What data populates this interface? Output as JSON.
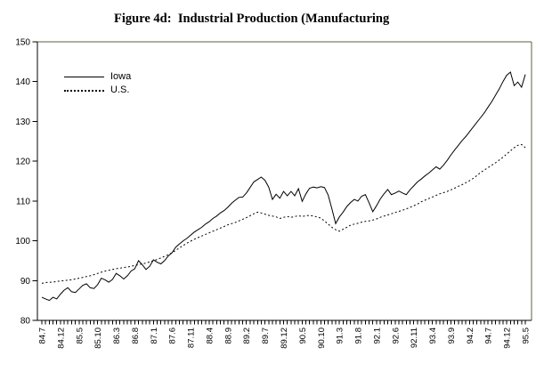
{
  "title": "Figure 4d:  Industrial Production (Manufacturing",
  "colors": {
    "background": "#ffffff",
    "frame": "#5f5f46",
    "axis": "#000000",
    "line": "#000000",
    "text": "#000000"
  },
  "legend": {
    "items": [
      {
        "label": "Iowa",
        "style": "solid"
      },
      {
        "label": "U.S.",
        "style": "dotted"
      }
    ]
  },
  "chart_data": {
    "type": "line",
    "title": "Figure 4d:  Industrial Production (Manufacturing",
    "xlabel": "",
    "ylabel": "",
    "ylim": [
      80,
      150
    ],
    "yticks": [
      80,
      90,
      100,
      110,
      120,
      130,
      140,
      150
    ],
    "grid": false,
    "legend_position": "top-left",
    "x_tick_label_every": 5,
    "x_tick_labels_shown": [
      "84.7",
      "84.12",
      "85.5",
      "85.10",
      "86.3",
      "86.8",
      "87.1",
      "87.6",
      "87.11",
      "88.4",
      "88.9",
      "89.2",
      "89.7",
      "89.12",
      "90.5",
      "90.10",
      "91.3",
      "91.8",
      "92.1",
      "92.6",
      "92.11",
      "93.4",
      "93.9",
      "94.2",
      "94.7",
      "94.12",
      "95.5"
    ],
    "x": [
      "84.7",
      "84.8",
      "84.9",
      "84.10",
      "84.11",
      "84.12",
      "85.1",
      "85.2",
      "85.3",
      "85.4",
      "85.5",
      "85.6",
      "85.7",
      "85.8",
      "85.9",
      "85.10",
      "85.11",
      "85.12",
      "86.1",
      "86.2",
      "86.3",
      "86.4",
      "86.5",
      "86.6",
      "86.7",
      "86.8",
      "86.9",
      "86.10",
      "86.11",
      "86.12",
      "87.1",
      "87.2",
      "87.3",
      "87.4",
      "87.5",
      "87.6",
      "87.7",
      "87.8",
      "87.9",
      "87.10",
      "87.11",
      "87.12",
      "88.1",
      "88.2",
      "88.3",
      "88.4",
      "88.5",
      "88.6",
      "88.7",
      "88.8",
      "88.9",
      "88.10",
      "88.11",
      "88.12",
      "89.1",
      "89.2",
      "89.3",
      "89.4",
      "89.5",
      "89.6",
      "89.7",
      "89.8",
      "89.9",
      "89.10",
      "89.11",
      "89.12",
      "90.1",
      "90.2",
      "90.3",
      "90.4",
      "90.5",
      "90.6",
      "90.7",
      "90.8",
      "90.9",
      "90.10",
      "90.11",
      "90.12",
      "91.1",
      "91.2",
      "91.3",
      "91.4",
      "91.5",
      "91.6",
      "91.7",
      "91.8",
      "91.9",
      "91.10",
      "91.11",
      "91.12",
      "92.1",
      "92.2",
      "92.3",
      "92.4",
      "92.5",
      "92.6",
      "92.7",
      "92.8",
      "92.9",
      "92.10",
      "92.11",
      "92.12",
      "93.1",
      "93.2",
      "93.3",
      "93.4",
      "93.5",
      "93.6",
      "93.7",
      "93.8",
      "93.9",
      "93.10",
      "93.11",
      "93.12",
      "94.1",
      "94.2",
      "94.3",
      "94.4",
      "94.5",
      "94.6",
      "94.7",
      "94.8",
      "94.9",
      "94.10",
      "94.11",
      "94.12",
      "95.1",
      "95.2",
      "95.3",
      "95.4",
      "95.5"
    ],
    "series": [
      {
        "name": "Iowa",
        "style": "solid",
        "values": [
          85.8,
          85.4,
          85.0,
          85.8,
          85.4,
          86.6,
          87.6,
          88.2,
          87.2,
          87.0,
          87.9,
          88.8,
          89.2,
          88.2,
          88.0,
          89.0,
          90.6,
          90.2,
          89.6,
          90.3,
          91.8,
          91.2,
          90.4,
          91.2,
          92.4,
          93.0,
          95.0,
          94.0,
          92.8,
          93.6,
          95.2,
          94.6,
          94.2,
          95.0,
          96.2,
          97.0,
          98.4,
          99.2,
          100.0,
          100.6,
          101.4,
          102.2,
          102.8,
          103.4,
          104.2,
          104.8,
          105.6,
          106.2,
          107.0,
          107.6,
          108.4,
          109.4,
          110.2,
          110.9,
          111.0,
          112.0,
          113.4,
          114.8,
          115.4,
          116.0,
          115.2,
          113.5,
          110.4,
          111.7,
          110.7,
          112.4,
          111.3,
          112.4,
          111.3,
          113.1,
          109.9,
          111.8,
          113.2,
          113.5,
          113.3,
          113.6,
          113.4,
          111.5,
          108.0,
          104.3,
          106.0,
          107.2,
          108.6,
          109.6,
          110.4,
          110.0,
          111.2,
          111.6,
          109.5,
          107.3,
          108.8,
          110.5,
          111.8,
          112.9,
          111.6,
          112.0,
          112.5,
          112.0,
          111.6,
          112.8,
          113.8,
          114.8,
          115.5,
          116.3,
          117.0,
          117.8,
          118.6,
          118.0,
          119.0,
          120.2,
          121.6,
          122.8,
          124.0,
          125.2,
          126.2,
          127.4,
          128.6,
          129.8,
          131.0,
          132.2,
          133.6,
          135.0,
          136.6,
          138.2,
          140.0,
          141.6,
          142.4,
          139.0,
          139.9,
          138.6,
          141.8
        ]
      },
      {
        "name": "U.S.",
        "style": "dotted",
        "values": [
          89.3,
          89.5,
          89.6,
          89.6,
          89.8,
          89.9,
          90.0,
          90.1,
          90.2,
          90.4,
          90.6,
          90.8,
          91.0,
          91.2,
          91.5,
          91.8,
          92.1,
          92.4,
          92.6,
          92.8,
          93.0,
          93.1,
          93.3,
          93.4,
          93.6,
          93.8,
          94.0,
          94.2,
          94.4,
          94.7,
          95.0,
          95.3,
          95.7,
          96.1,
          96.5,
          97.0,
          97.6,
          98.2,
          98.8,
          99.4,
          99.9,
          100.4,
          100.8,
          101.2,
          101.6,
          102.0,
          102.4,
          102.8,
          103.2,
          103.6,
          104.0,
          104.3,
          104.6,
          105.0,
          105.4,
          105.8,
          106.3,
          106.8,
          107.2,
          107.0,
          106.7,
          106.4,
          106.2,
          106.0,
          105.6,
          105.9,
          106.1,
          105.9,
          106.1,
          106.3,
          106.1,
          106.3,
          106.4,
          106.2,
          106.0,
          105.7,
          105.0,
          104.2,
          103.4,
          102.8,
          102.4,
          102.9,
          103.4,
          103.9,
          104.2,
          104.4,
          104.7,
          104.9,
          105.0,
          105.2,
          105.5,
          105.9,
          106.2,
          106.5,
          106.8,
          107.1,
          107.4,
          107.7,
          108.0,
          108.4,
          108.8,
          109.2,
          109.8,
          110.2,
          110.6,
          111.0,
          111.4,
          111.8,
          112.1,
          112.4,
          112.8,
          113.2,
          113.7,
          114.1,
          114.6,
          115.1,
          115.7,
          116.4,
          117.2,
          117.8,
          118.4,
          119.0,
          119.6,
          120.3,
          121.0,
          121.8,
          122.6,
          123.4,
          124.0,
          124.2,
          123.4
        ]
      }
    ]
  }
}
